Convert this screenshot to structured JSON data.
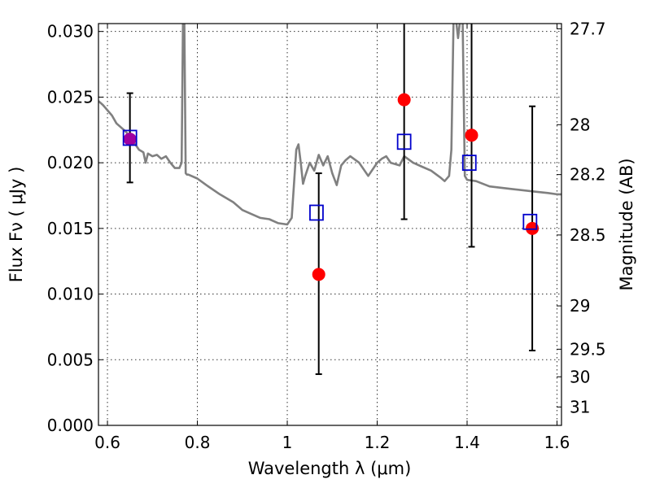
{
  "chart_data": {
    "type": "scatter",
    "title": "",
    "xlabel": "Wavelength  λ (μm)",
    "ylabel": "Flux  Fν  ( μJy )",
    "y2label": "Magnitude (AB)",
    "xlim": [
      0.58,
      1.61
    ],
    "ylim": [
      0.0,
      0.0306
    ],
    "grid": true,
    "x_ticks": [
      0.6,
      0.8,
      1.0,
      1.2,
      1.4,
      1.6
    ],
    "x_tick_labels": [
      "0.6",
      "0.8",
      "1",
      "1.2",
      "1.4",
      "1.6"
    ],
    "y_ticks": [
      0.0,
      0.005,
      0.01,
      0.015,
      0.02,
      0.025,
      0.03
    ],
    "y_tick_labels": [
      "0.000",
      "0.005",
      "0.010",
      "0.015",
      "0.020",
      "0.025",
      "0.030"
    ],
    "y2_ticks": [
      {
        "flux": 0.0302,
        "label": "27.7"
      },
      {
        "flux": 0.0229,
        "label": "28"
      },
      {
        "flux": 0.0191,
        "label": "28.2"
      },
      {
        "flux": 0.0145,
        "label": "28.5"
      },
      {
        "flux": 0.0091,
        "label": "29"
      },
      {
        "flux": 0.0058,
        "label": "29.5"
      },
      {
        "flux": 0.0037,
        "label": "30"
      },
      {
        "flux": 0.0014,
        "label": "31"
      }
    ],
    "series": [
      {
        "kind": "spectrum",
        "color": "#808080",
        "x": [
          0.58,
          0.59,
          0.6,
          0.61,
          0.62,
          0.64,
          0.65,
          0.66,
          0.67,
          0.68,
          0.685,
          0.69,
          0.7,
          0.71,
          0.72,
          0.73,
          0.74,
          0.75,
          0.76,
          0.765,
          0.768,
          0.771,
          0.774,
          0.777,
          0.78,
          0.8,
          0.82,
          0.85,
          0.88,
          0.9,
          0.92,
          0.94,
          0.96,
          0.98,
          1.0,
          1.01,
          1.02,
          1.025,
          1.03,
          1.035,
          1.04,
          1.05,
          1.06,
          1.07,
          1.08,
          1.09,
          1.1,
          1.11,
          1.12,
          1.13,
          1.14,
          1.16,
          1.18,
          1.2,
          1.21,
          1.22,
          1.23,
          1.25,
          1.26,
          1.28,
          1.3,
          1.32,
          1.34,
          1.35,
          1.36,
          1.365,
          1.37,
          1.375,
          1.38,
          1.385,
          1.39,
          1.395,
          1.4,
          1.42,
          1.45,
          1.5,
          1.55,
          1.58,
          1.6,
          1.61
        ],
        "y": [
          0.0247,
          0.0244,
          0.024,
          0.0236,
          0.023,
          0.0224,
          0.022,
          0.0215,
          0.021,
          0.0208,
          0.02,
          0.0207,
          0.0205,
          0.0206,
          0.0203,
          0.0205,
          0.02,
          0.0196,
          0.0196,
          0.02,
          0.031,
          0.031,
          0.0192,
          0.0191,
          0.0191,
          0.0188,
          0.0183,
          0.0176,
          0.017,
          0.0164,
          0.0161,
          0.0158,
          0.0157,
          0.0154,
          0.0153,
          0.0158,
          0.021,
          0.0214,
          0.02,
          0.0184,
          0.019,
          0.02,
          0.0194,
          0.0206,
          0.0198,
          0.0205,
          0.0192,
          0.0183,
          0.0198,
          0.0202,
          0.0205,
          0.02,
          0.019,
          0.02,
          0.0203,
          0.0205,
          0.02,
          0.0198,
          0.0205,
          0.02,
          0.0197,
          0.0194,
          0.0189,
          0.0186,
          0.019,
          0.021,
          0.031,
          0.031,
          0.0295,
          0.031,
          0.031,
          0.019,
          0.0187,
          0.0186,
          0.0182,
          0.018,
          0.0178,
          0.0177,
          0.0176,
          0.0176
        ]
      },
      {
        "kind": "model-points",
        "marker": "open-square",
        "color": "#0000cc",
        "x": [
          0.65,
          1.065,
          1.26,
          1.405,
          1.54
        ],
        "y": [
          0.0219,
          0.0162,
          0.0216,
          0.02,
          0.0155
        ]
      },
      {
        "kind": "observed-points",
        "marker": "filled-circle",
        "color": "#ff0000",
        "x": [
          0.65,
          1.07,
          1.26,
          1.41,
          1.545
        ],
        "y": [
          0.0218,
          0.0115,
          0.0248,
          0.0221,
          0.015
        ],
        "yerr_low": [
          0.0185,
          0.0039,
          0.0157,
          0.0136,
          0.0057
        ],
        "yerr_high": [
          0.0253,
          0.0192,
          0.0306,
          0.0306,
          0.0243
        ]
      }
    ],
    "overlap_color": "#a000a0"
  }
}
